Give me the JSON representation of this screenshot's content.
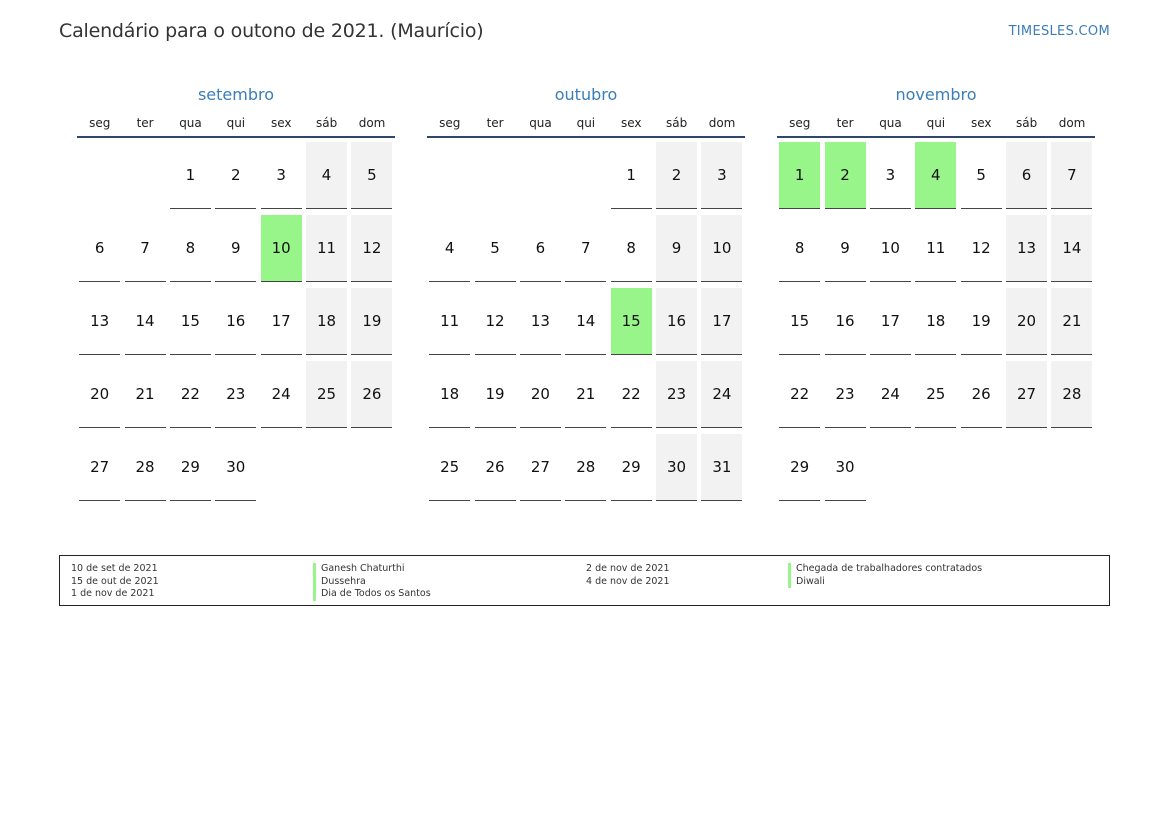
{
  "header": {
    "title": "Calendário para o outono de 2021. (Maurício)",
    "brand": "TIMESLES.COM"
  },
  "colors": {
    "holiday": "#98f58a",
    "weekend": "#f2f2f2",
    "accent": "#3a7db8"
  },
  "weekdays": [
    "seg",
    "ter",
    "qua",
    "qui",
    "sex",
    "sáb",
    "dom"
  ],
  "months": [
    {
      "name": "setembro",
      "weeks": [
        [
          "",
          "",
          "1",
          "2",
          "3",
          "4",
          "5"
        ],
        [
          "6",
          "7",
          "8",
          "9",
          "10",
          "11",
          "12"
        ],
        [
          "13",
          "14",
          "15",
          "16",
          "17",
          "18",
          "19"
        ],
        [
          "20",
          "21",
          "22",
          "23",
          "24",
          "25",
          "26"
        ],
        [
          "27",
          "28",
          "29",
          "30",
          "",
          "",
          ""
        ]
      ],
      "holidays": [
        "10"
      ]
    },
    {
      "name": "outubro",
      "weeks": [
        [
          "",
          "",
          "",
          "",
          "1",
          "2",
          "3"
        ],
        [
          "4",
          "5",
          "6",
          "7",
          "8",
          "9",
          "10"
        ],
        [
          "11",
          "12",
          "13",
          "14",
          "15",
          "16",
          "17"
        ],
        [
          "18",
          "19",
          "20",
          "21",
          "22",
          "23",
          "24"
        ],
        [
          "25",
          "26",
          "27",
          "28",
          "29",
          "30",
          "31"
        ]
      ],
      "holidays": [
        "15"
      ]
    },
    {
      "name": "novembro",
      "weeks": [
        [
          "1",
          "2",
          "3",
          "4",
          "5",
          "6",
          "7"
        ],
        [
          "8",
          "9",
          "10",
          "11",
          "12",
          "13",
          "14"
        ],
        [
          "15",
          "16",
          "17",
          "18",
          "19",
          "20",
          "21"
        ],
        [
          "22",
          "23",
          "24",
          "25",
          "26",
          "27",
          "28"
        ],
        [
          "29",
          "30",
          "",
          "",
          "",
          "",
          ""
        ]
      ],
      "holidays": [
        "1",
        "2",
        "4"
      ]
    }
  ],
  "legend": [
    {
      "date": "10 de set de 2021",
      "name": "Ganesh Chaturthi"
    },
    {
      "date": "15 de out de 2021",
      "name": "Dussehra"
    },
    {
      "date": "1 de nov de 2021",
      "name": "Dia de Todos os Santos"
    },
    {
      "date": "2 de nov de 2021",
      "name": "Chegada de trabalhadores contratados"
    },
    {
      "date": "4 de nov de 2021",
      "name": "Diwali"
    }
  ]
}
